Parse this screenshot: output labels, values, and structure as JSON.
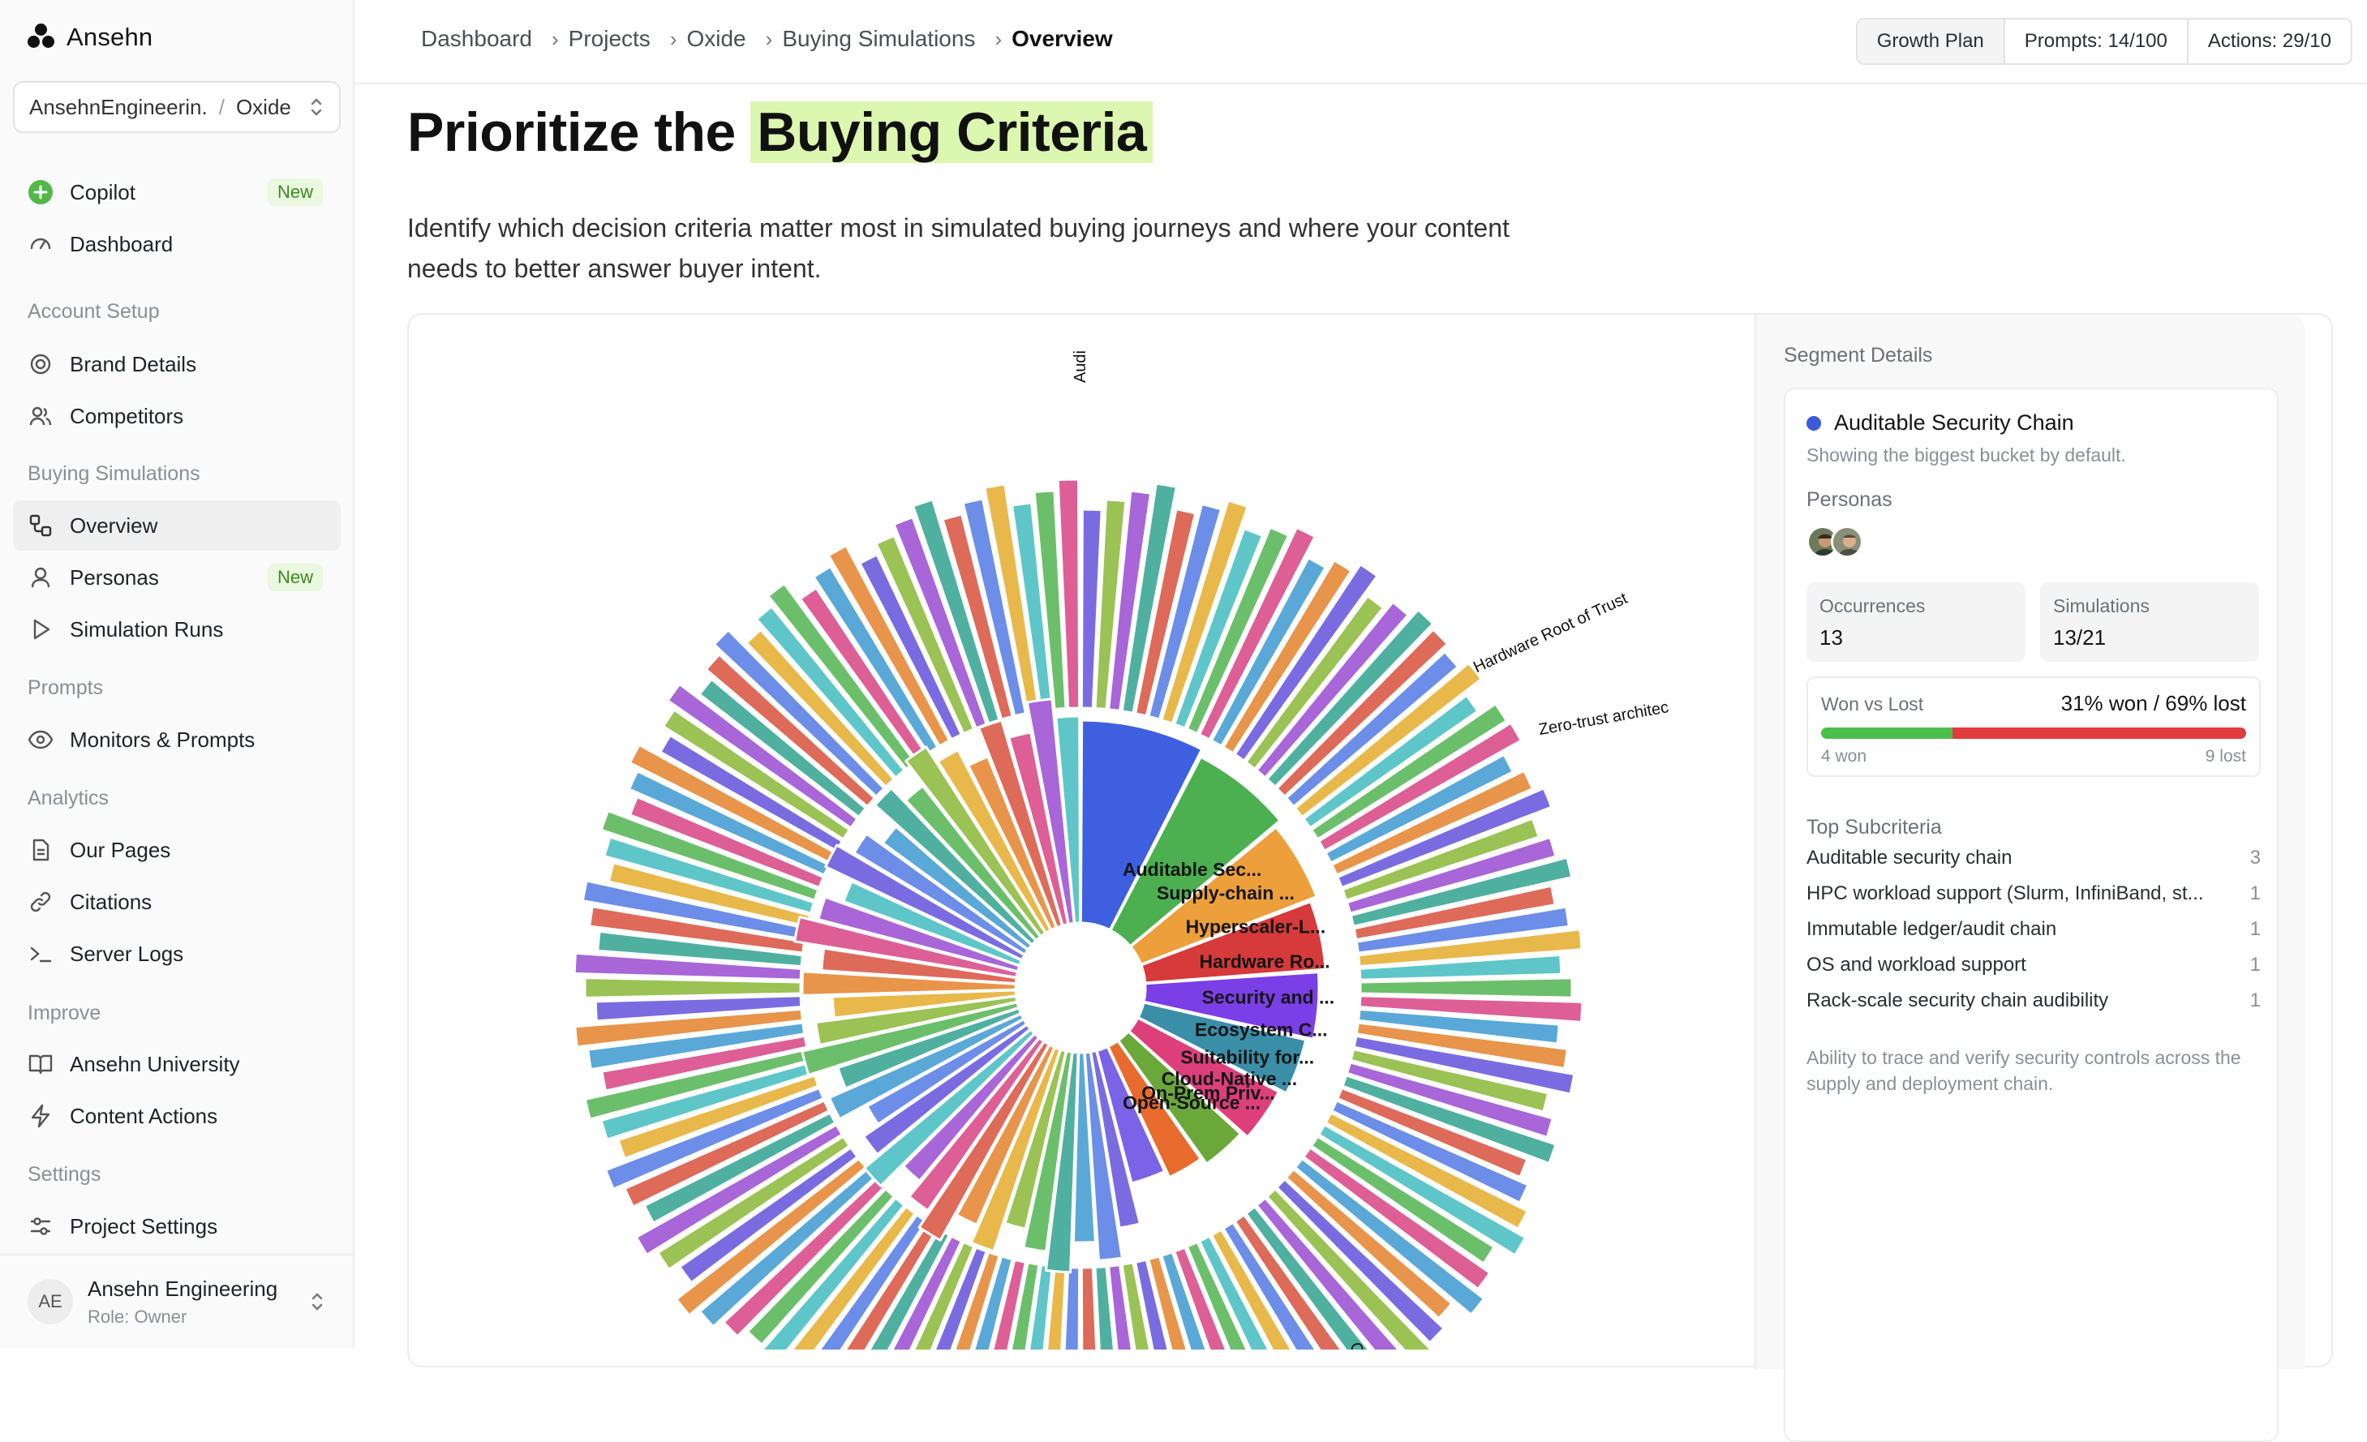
{
  "app": {
    "name": "Ansehn"
  },
  "workspace": {
    "org": "AnsehnEngineerin.",
    "project": "Oxide"
  },
  "colors": {
    "accent_green": "#4bbf4b",
    "accent_red": "#e23b3b",
    "highlight": "#dbf7b0",
    "badge_bg": "#e9f8df",
    "badge_text": "#3d8a1e"
  },
  "sidebar": {
    "top_items": [
      {
        "label": "Copilot",
        "icon": "copilot-plus-icon",
        "badge": "New"
      },
      {
        "label": "Dashboard",
        "icon": "gauge-icon"
      }
    ],
    "sections": [
      {
        "label": "Account Setup",
        "items": [
          {
            "label": "Brand Details",
            "icon": "brand-badge-icon"
          },
          {
            "label": "Competitors",
            "icon": "users-icon"
          }
        ]
      },
      {
        "label": "Buying Simulations",
        "items": [
          {
            "label": "Overview",
            "icon": "overview-icon"
          },
          {
            "label": "Personas",
            "icon": "user-icon",
            "badge": "New"
          },
          {
            "label": "Simulation Runs",
            "icon": "play-icon"
          }
        ]
      },
      {
        "label": "Prompts",
        "items": [
          {
            "label": "Monitors & Prompts",
            "icon": "eye-icon"
          }
        ]
      },
      {
        "label": "Analytics",
        "items": [
          {
            "label": "Our Pages",
            "icon": "document-icon"
          },
          {
            "label": "Citations",
            "icon": "link-icon"
          },
          {
            "label": "Server Logs",
            "icon": "terminal-icon"
          }
        ]
      },
      {
        "label": "Improve",
        "items": [
          {
            "label": "Ansehn University",
            "icon": "book-icon"
          },
          {
            "label": "Content Actions",
            "icon": "bolt-icon"
          }
        ]
      },
      {
        "label": "Settings",
        "items": [
          {
            "label": "Project Settings",
            "icon": "sliders-icon"
          }
        ]
      }
    ],
    "user": {
      "initials": "AE",
      "name": "Ansehn Engineering",
      "role": "Role: Owner"
    }
  },
  "header": {
    "breadcrumbs": [
      "Dashboard",
      "Projects",
      "Oxide",
      "Buying Simulations",
      "Overview"
    ],
    "plan": "Growth Plan",
    "prompts": "Prompts: 14/100",
    "actions": "Actions: 29/10"
  },
  "main": {
    "title_prefix": "Prioritize the",
    "title_highlight": "Buying Criteria",
    "description": "Identify which decision criteria matter most in simulated buying journeys and where your content needs to better answer buyer intent."
  },
  "chart_data": {
    "type": "sunburst",
    "inner_segments": [
      {
        "label": "Auditable Sec...",
        "value": 13,
        "color": "#3d5fe0"
      },
      {
        "label": "Supply-chain ...",
        "value": 11,
        "color": "#4caf50"
      },
      {
        "label": "Hyperscaler-L...",
        "value": 9,
        "color": "#ec9f3a"
      },
      {
        "label": "Hardware Ro...",
        "value": 8,
        "color": "#d63a3a"
      },
      {
        "label": "Security and ...",
        "value": 8,
        "color": "#7a3fe6"
      },
      {
        "label": "Ecosystem C...",
        "value": 7,
        "color": "#3a8ea8"
      },
      {
        "label": "Suitability for...",
        "value": 7,
        "color": "#dd3f7a"
      },
      {
        "label": "Cloud-Native ...",
        "value": 6,
        "color": "#6aa83a"
      },
      {
        "label": "On-Prem Priv...",
        "value": 5,
        "color": "#e86a2d"
      },
      {
        "label": "Open-Source ...",
        "value": 5,
        "color": "#7a63e6"
      }
    ],
    "outer_labels": [
      "Audi",
      "Hardware Root of Trust",
      "Zero-trust architec",
      "C"
    ]
  },
  "details": {
    "heading": "Segment Details",
    "segment": {
      "name": "Auditable Security Chain",
      "color": "#3a5bdc",
      "note": "Showing the biggest bucket by default."
    },
    "personas_label": "Personas",
    "occurrences": {
      "label": "Occurrences",
      "value": "13"
    },
    "simulations": {
      "label": "Simulations",
      "value": "13/21"
    },
    "won_lost": {
      "label": "Won vs Lost",
      "summary": "31% won / 69% lost",
      "won": "4 won",
      "lost": "9 lost",
      "won_pct": 31
    },
    "subcriteria_label": "Top Subcriteria",
    "subcriteria": [
      {
        "name": "Auditable security chain",
        "count": "3"
      },
      {
        "name": "HPC workload support (Slurm, InfiniBand, st...",
        "count": "1"
      },
      {
        "name": "Immutable ledger/audit chain",
        "count": "1"
      },
      {
        "name": "OS and workload support",
        "count": "1"
      },
      {
        "name": "Rack-scale security chain audibility",
        "count": "1"
      }
    ],
    "description": "Ability to trace and verify security controls across the supply and deployment chain."
  }
}
